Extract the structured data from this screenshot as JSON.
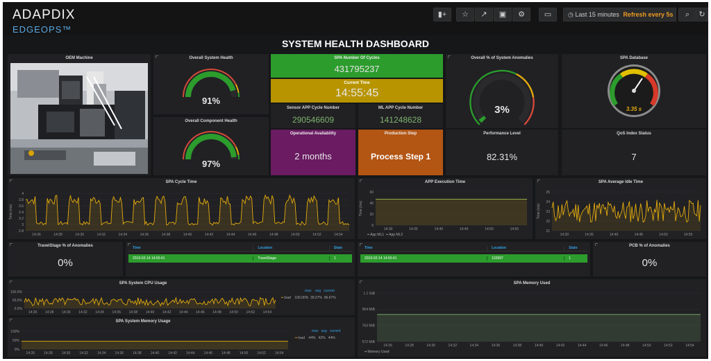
{
  "app": {
    "name": "ADAPDIX",
    "product": "EDGEOPS™"
  },
  "toolbar": {
    "icons": [
      "add-panel-icon",
      "star-icon",
      "share-icon",
      "save-icon",
      "gear-icon",
      "tv-icon"
    ],
    "time_range": "Last 15 minutes",
    "refresh": "Refresh every 5s"
  },
  "dashboard_title": "SYSTEM HEALTH DASHBOARD",
  "panels": {
    "oem": {
      "title": "OEM Machine"
    },
    "overall_health": {
      "title": "Overall System Health",
      "value": "91%",
      "fraction": 0.91
    },
    "component_health": {
      "title": "Overall Component Health",
      "value": "97%",
      "fraction": 0.97
    },
    "spa_cycles": {
      "title": "SPA Number Of Cycles",
      "value": "431795237"
    },
    "current_time": {
      "title": "Current Time",
      "value": "14:55:45"
    },
    "sensor_app": {
      "title": "Sensor APP Cycle Number",
      "value": "290546609"
    },
    "ml_app": {
      "title": "ML APP Cycle Number",
      "value": "141248628"
    },
    "availability": {
      "title": "Operational Availability",
      "value": "2 months"
    },
    "production_step": {
      "title": "Production Step",
      "value": "Process Step 1"
    },
    "anomalies": {
      "title": "Overall % of System Anomalies",
      "value": "3%",
      "fraction": 0.03
    },
    "spa_database": {
      "title": "SPA Database",
      "value": "3.35 s"
    },
    "performance": {
      "title": "Performance Level",
      "value": "82.31%"
    },
    "qos": {
      "title": "QoS Index Status",
      "value": "7"
    },
    "travelstage": {
      "title": "TravelStage % of Anomalies",
      "value": "0%"
    },
    "pcb": {
      "title": "PCB % of Anomalies",
      "value": "0%"
    },
    "table1": {
      "headers": [
        "Time",
        "Location",
        "State"
      ],
      "row": [
        "2019-02-14 14:55:41",
        "TravelStage",
        "1"
      ]
    },
    "table2": {
      "headers": [
        "Time",
        "Location",
        "State"
      ],
      "row": [
        "2019-02-14 14:55:41",
        "103997",
        "1"
      ]
    }
  },
  "colors": {
    "green": "#2c9c2d",
    "yellow": "#c9a400",
    "purple": "#6a1b62",
    "orange": "#b35513",
    "series": "#e5ac0e",
    "mem": "#7eb26d"
  },
  "chart_data": [
    {
      "type": "line",
      "title": "SPA Cycle Time",
      "ylabel": "Time (ms)",
      "y_ticks": [
        "4",
        "3.8",
        "3.6",
        "3.4",
        "3.2",
        "3",
        "2.8"
      ],
      "x_ticks": [
        "14:26",
        "14:28",
        "14:30",
        "14:32",
        "14:34",
        "14:36",
        "14:38",
        "14:40",
        "14:42",
        "14:44",
        "14:46",
        "14:48",
        "14:50",
        "14:52",
        "14:54"
      ],
      "ylim": [
        2.8,
        4.0
      ]
    },
    {
      "type": "line",
      "title": "APP Execution Time",
      "ylabel": "Time (ms)",
      "y_ticks": [
        "60",
        "40",
        "20",
        "0"
      ],
      "x_ticks": [
        "14:30",
        "14:35",
        "14:40",
        "14:45",
        "14:50",
        "14:55"
      ],
      "series": [
        {
          "name": "App ML1"
        },
        {
          "name": "App ML2"
        }
      ],
      "ylim": [
        0,
        60
      ]
    },
    {
      "type": "line",
      "title": "SPA Average Idle Time",
      "ylabel": "Time (ms)",
      "y_ticks": [
        "25",
        "24",
        "23",
        "22",
        "21"
      ],
      "x_ticks": [
        "14:30",
        "14:35",
        "14:40",
        "14:45",
        "14:50",
        "14:55"
      ],
      "ylim": [
        21,
        25
      ]
    },
    {
      "type": "line",
      "title": "SPA System CPU Usage",
      "y_ticks": [
        "100.0%",
        "50.0%",
        "0.0%"
      ],
      "x_ticks": [
        "14:26",
        "14:28",
        "14:30",
        "14:32",
        "14:34",
        "14:36",
        "14:38",
        "14:40",
        "14:42",
        "14:44",
        "14:46",
        "14:48",
        "14:50",
        "14:52",
        "14:54"
      ],
      "legend_headers": [
        "max",
        "avg",
        "current"
      ],
      "series": [
        {
          "name": "load",
          "max": "100.00%",
          "avg": "39.27%",
          "current": "96.67%"
        }
      ]
    },
    {
      "type": "line",
      "title": "SPA System Memory Usage",
      "y_ticks": [
        "100%",
        "50%",
        "0%"
      ],
      "x_ticks": [
        "14:26",
        "14:28",
        "14:30",
        "14:32",
        "14:34",
        "14:36",
        "14:38",
        "14:40",
        "14:42",
        "14:44",
        "14:46",
        "14:48",
        "14:50",
        "14:52",
        "14:54"
      ],
      "legend_headers": [
        "max",
        "avg",
        "current"
      ],
      "series": [
        {
          "name": "load",
          "max": "44%",
          "avg": "42%",
          "current": "44%"
        }
      ]
    },
    {
      "type": "line",
      "title": "SPA Memory Used",
      "y_ticks": [
        "1.1 GiB",
        "954 MiB",
        "763 MiB",
        "572 MiB"
      ],
      "x_ticks": [
        "14:26",
        "14:28",
        "14:30",
        "14:32",
        "14:34",
        "14:36",
        "14:38",
        "14:40",
        "14:42",
        "14:44",
        "14:46",
        "14:48",
        "14:50",
        "14:52",
        "14:54"
      ],
      "series": [
        {
          "name": "Memory Used"
        }
      ]
    }
  ]
}
